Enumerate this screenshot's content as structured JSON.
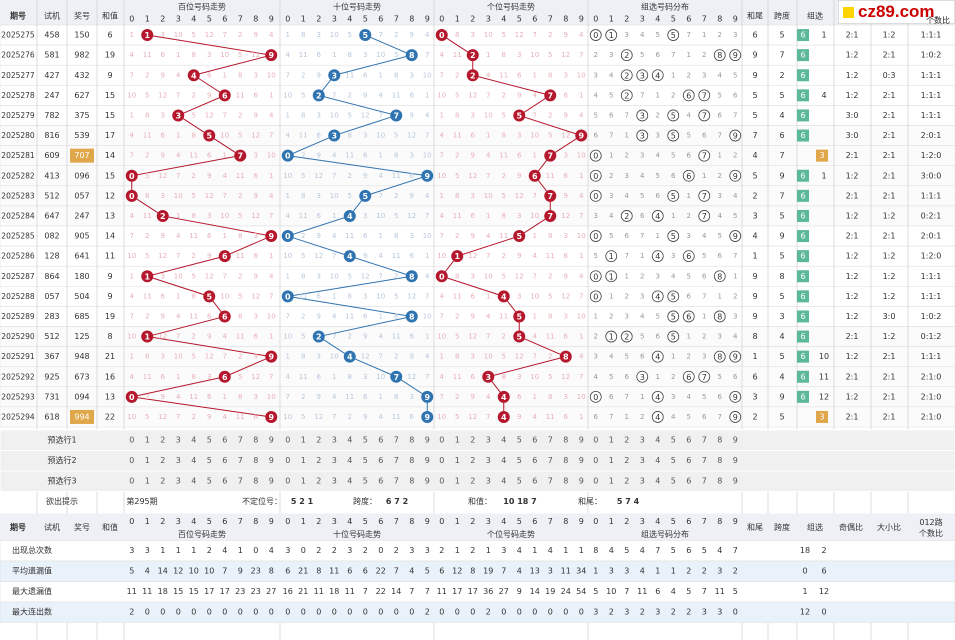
{
  "chart_data": {
    "type": "table",
    "header": {
      "period": "期号",
      "test": "试机",
      "prize": "奖号",
      "sum": "和值",
      "hundreds": "百位号码走势",
      "tens": "十位号码走势",
      "units": "个位号码走势",
      "group": "组选号码分布",
      "sum_tail": "和尾",
      "span": "跨度",
      "group_type": "组选",
      "odd_even": "奇偶比",
      "big_small": "大小比",
      "ratio012": "012路",
      "ratio012_b": "个数比"
    },
    "digits": [
      "0",
      "1",
      "2",
      "3",
      "4",
      "5",
      "6",
      "7",
      "8",
      "9"
    ],
    "rows": [
      {
        "p": "2025275",
        "t": "458",
        "n": "150",
        "s": "6",
        "tail": "6",
        "span": "5",
        "g": "6",
        "g2": "1",
        "oe": "2:1",
        "bs": "1:2",
        "r": "1:1:1"
      },
      {
        "p": "2025276",
        "t": "581",
        "n": "982",
        "s": "19",
        "tail": "9",
        "span": "7",
        "g": "6",
        "g2": "",
        "oe": "1:2",
        "bs": "2:1",
        "r": "1:0:2"
      },
      {
        "p": "2025277",
        "t": "427",
        "n": "432",
        "s": "9",
        "tail": "9",
        "span": "2",
        "g": "6",
        "g2": "",
        "oe": "1:2",
        "bs": "0:3",
        "r": "1:1:1"
      },
      {
        "p": "2025278",
        "t": "247",
        "n": "627",
        "s": "15",
        "tail": "5",
        "span": "5",
        "g": "6",
        "g2": "4",
        "oe": "1:2",
        "bs": "2:1",
        "r": "1:1:1"
      },
      {
        "p": "2025279",
        "t": "782",
        "n": "375",
        "s": "15",
        "tail": "5",
        "span": "4",
        "g": "6",
        "g2": "",
        "oe": "3:0",
        "bs": "2:1",
        "r": "1:1:1"
      },
      {
        "p": "2025280",
        "t": "816",
        "n": "539",
        "s": "17",
        "tail": "7",
        "span": "6",
        "g": "6",
        "g2": "",
        "oe": "3:0",
        "bs": "2:1",
        "r": "2:0:1"
      },
      {
        "p": "2025281",
        "t": "609",
        "n": "707",
        "s": "14",
        "tail": "4",
        "span": "7",
        "g": "",
        "g2": "3",
        "oe": "2:1",
        "bs": "2:1",
        "r": "1:2:0",
        "hl": true
      },
      {
        "p": "2025282",
        "t": "413",
        "n": "096",
        "s": "15",
        "tail": "5",
        "span": "9",
        "g": "6",
        "g2": "1",
        "oe": "1:2",
        "bs": "2:1",
        "r": "3:0:0"
      },
      {
        "p": "2025283",
        "t": "512",
        "n": "057",
        "s": "12",
        "tail": "2",
        "span": "7",
        "g": "6",
        "g2": "",
        "oe": "2:1",
        "bs": "2:1",
        "r": "1:1:1"
      },
      {
        "p": "2025284",
        "t": "647",
        "n": "247",
        "s": "13",
        "tail": "3",
        "span": "5",
        "g": "6",
        "g2": "",
        "oe": "1:2",
        "bs": "1:2",
        "r": "0:2:1"
      },
      {
        "p": "2025285",
        "t": "082",
        "n": "905",
        "s": "14",
        "tail": "4",
        "span": "9",
        "g": "6",
        "g2": "",
        "oe": "2:1",
        "bs": "2:1",
        "r": "2:0:1"
      },
      {
        "p": "2025286",
        "t": "128",
        "n": "641",
        "s": "11",
        "tail": "1",
        "span": "5",
        "g": "6",
        "g2": "",
        "oe": "1:2",
        "bs": "1:2",
        "r": "1:2:0"
      },
      {
        "p": "2025287",
        "t": "864",
        "n": "180",
        "s": "9",
        "tail": "9",
        "span": "8",
        "g": "6",
        "g2": "",
        "oe": "1:2",
        "bs": "1:2",
        "r": "1:1:1"
      },
      {
        "p": "2025288",
        "t": "057",
        "n": "504",
        "s": "9",
        "tail": "9",
        "span": "5",
        "g": "6",
        "g2": "",
        "oe": "1:2",
        "bs": "1:2",
        "r": "1:1:1"
      },
      {
        "p": "2025289",
        "t": "283",
        "n": "685",
        "s": "19",
        "tail": "9",
        "span": "3",
        "g": "6",
        "g2": "",
        "oe": "1:2",
        "bs": "3:0",
        "r": "1:0:2"
      },
      {
        "p": "2025290",
        "t": "512",
        "n": "125",
        "s": "8",
        "tail": "8",
        "span": "4",
        "g": "6",
        "g2": "",
        "oe": "2:1",
        "bs": "1:2",
        "r": "0:1:2"
      },
      {
        "p": "2025291",
        "t": "367",
        "n": "948",
        "s": "21",
        "tail": "1",
        "span": "5",
        "g": "6",
        "g2": "10",
        "oe": "1:2",
        "bs": "2:1",
        "r": "1:1:1"
      },
      {
        "p": "2025292",
        "t": "925",
        "n": "673",
        "s": "16",
        "tail": "6",
        "span": "4",
        "g": "6",
        "g2": "11",
        "oe": "2:1",
        "bs": "2:1",
        "r": "2:1:0"
      },
      {
        "p": "2025293",
        "t": "731",
        "n": "094",
        "s": "13",
        "tail": "3",
        "span": "9",
        "g": "6",
        "g2": "12",
        "oe": "1:2",
        "bs": "2:1",
        "r": "2:1:0"
      },
      {
        "p": "2025294",
        "t": "618",
        "n": "994",
        "s": "22",
        "tail": "2",
        "span": "5",
        "g": "",
        "g2": "3",
        "oe": "2:1",
        "bs": "2:1",
        "r": "2:1:0",
        "hl": true
      }
    ],
    "preselect": [
      "预选行1",
      "预选行2",
      "预选行3"
    ],
    "hint": {
      "label": "欲出提示",
      "period": "第295期",
      "uncertain": "不定位号：",
      "uncertain_v": "5 2 1",
      "span_l": "跨度：",
      "span_v": "6 7 2",
      "sum_l": "和值：",
      "sum_v": "10 18 7",
      "tail_l": "和尾：",
      "tail_v": "5 7 4"
    },
    "stats": [
      {
        "label": "出现总次数",
        "h": [
          "3",
          "3",
          "1",
          "1",
          "1",
          "2",
          "4",
          "1",
          "0",
          "4"
        ],
        "t": [
          "3",
          "0",
          "2",
          "2",
          "3",
          "2",
          "0",
          "2",
          "3",
          "3"
        ],
        "u": [
          "2",
          "1",
          "2",
          "1",
          "3",
          "4",
          "1",
          "4",
          "1",
          "1"
        ],
        "g": [
          "8",
          "4",
          "5",
          "4",
          "7",
          "5",
          "6",
          "5",
          "4",
          "7"
        ],
        "g6": "18",
        "g3": "2"
      },
      {
        "label": "平均遗漏值",
        "h": [
          "5",
          "4",
          "14",
          "12",
          "10",
          "10",
          "7",
          "9",
          "23",
          "8"
        ],
        "t": [
          "6",
          "21",
          "8",
          "11",
          "6",
          "6",
          "22",
          "7",
          "4",
          "5"
        ],
        "u": [
          "6",
          "12",
          "8",
          "19",
          "7",
          "4",
          "13",
          "3",
          "11",
          "34"
        ],
        "g": [
          "1",
          "3",
          "3",
          "4",
          "1",
          "1",
          "2",
          "2",
          "3",
          "2"
        ],
        "g6": "0",
        "g3": "6"
      },
      {
        "label": "最大遗漏值",
        "h": [
          "11",
          "11",
          "18",
          "15",
          "15",
          "17",
          "17",
          "23",
          "23",
          "27"
        ],
        "t": [
          "16",
          "21",
          "11",
          "18",
          "11",
          "7",
          "22",
          "14",
          "7",
          "7"
        ],
        "u": [
          "11",
          "17",
          "17",
          "36",
          "27",
          "9",
          "14",
          "19",
          "24",
          "54"
        ],
        "g": [
          "5",
          "10",
          "7",
          "11",
          "6",
          "4",
          "5",
          "7",
          "11",
          "5"
        ],
        "g6": "1",
        "g3": "12"
      },
      {
        "label": "最大连出数",
        "h": [
          "2",
          "0",
          "0",
          "0",
          "0",
          "0",
          "0",
          "0",
          "0",
          "0"
        ],
        "t": [
          "0",
          "0",
          "0",
          "0",
          "0",
          "0",
          "0",
          "0",
          "0",
          "2"
        ],
        "u": [
          "0",
          "0",
          "0",
          "2",
          "0",
          "0",
          "0",
          "0",
          "0",
          "0"
        ],
        "g": [
          "3",
          "2",
          "3",
          "2",
          "3",
          "2",
          "2",
          "3",
          "3",
          "0"
        ],
        "g6": "12",
        "g3": "0"
      }
    ],
    "colors": {
      "red": "#b5172c",
      "blue": "#2f73b0",
      "grid": "#dcdcdc",
      "header": "#eef0f5",
      "green": "#5cb89a",
      "orange": "#e0a64a"
    }
  },
  "watermark": {
    "site": "cz89.com",
    "sub": "个数比"
  }
}
